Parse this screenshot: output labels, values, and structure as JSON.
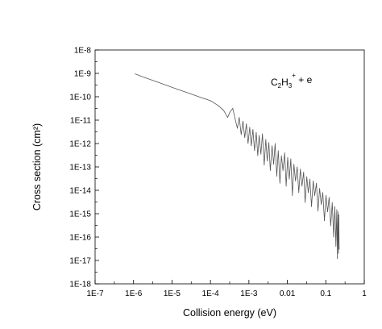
{
  "chart_data": {
    "type": "line",
    "title": "",
    "xlabel": "Collision energy (eV)",
    "ylabel": "Cross section (cm²)",
    "annotation": {
      "species": "C2H3+ + e",
      "parts": [
        {
          "text": "C",
          "kind": "normal"
        },
        {
          "text": "2",
          "kind": "sub"
        },
        {
          "text": "H",
          "kind": "normal"
        },
        {
          "text": "3",
          "kind": "sub"
        },
        {
          "text": "+",
          "kind": "sup"
        },
        {
          "text": " + e",
          "kind": "normal"
        }
      ]
    },
    "x_scale": "log",
    "y_scale": "log",
    "xlim": [
      1e-07,
      1
    ],
    "ylim": [
      1e-18,
      1e-08
    ],
    "x_ticks": [
      {
        "value": 1e-07,
        "label": "1E-7"
      },
      {
        "value": 1e-06,
        "label": "1E-6"
      },
      {
        "value": 1e-05,
        "label": "1E-5"
      },
      {
        "value": 0.0001,
        "label": "1E-4"
      },
      {
        "value": 0.001,
        "label": "1E-3"
      },
      {
        "value": 0.01,
        "label": "0.01"
      },
      {
        "value": 0.1,
        "label": "0.1"
      },
      {
        "value": 1,
        "label": "1"
      }
    ],
    "y_ticks": [
      {
        "value": 1e-08,
        "label": "1E-8"
      },
      {
        "value": 1e-09,
        "label": "1E-9"
      },
      {
        "value": 1e-10,
        "label": "1E-10"
      },
      {
        "value": 1e-11,
        "label": "1E-11"
      },
      {
        "value": 1e-12,
        "label": "1E-12"
      },
      {
        "value": 1e-13,
        "label": "1E-13"
      },
      {
        "value": 1e-14,
        "label": "1E-14"
      },
      {
        "value": 1e-15,
        "label": "1E-15"
      },
      {
        "value": 1e-16,
        "label": "1E-16"
      },
      {
        "value": 1e-17,
        "label": "1E-17"
      },
      {
        "value": 1e-18,
        "label": "1E-18"
      }
    ],
    "grid": false,
    "legend": "none",
    "series": [
      {
        "color": "#555555",
        "points": [
          [
            1.1e-06,
            9.5e-10
          ],
          [
            2e-06,
            6.5e-10
          ],
          [
            4e-06,
            4.4e-10
          ],
          [
            8e-06,
            2.9e-10
          ],
          [
            1.5e-05,
            2e-10
          ],
          [
            3e-05,
            1.35e-10
          ],
          [
            6e-05,
            9e-11
          ],
          [
            0.0001,
            6.8e-11
          ],
          [
            0.00016,
            4.2e-11
          ],
          [
            0.00022,
            2.6e-11
          ],
          [
            0.00028,
            1.3e-11
          ],
          [
            0.00032,
            2.2e-11
          ],
          [
            0.00038,
            3.2e-11
          ],
          [
            0.00044,
            1.1e-11
          ],
          [
            0.0005,
            4.5e-12
          ],
          [
            0.00056,
            1.3e-11
          ],
          [
            0.00063,
            2.4e-12
          ],
          [
            0.0007,
            9e-12
          ],
          [
            0.00078,
            1.8e-12
          ],
          [
            0.00086,
            7e-12
          ],
          [
            0.00095,
            1e-12
          ],
          [
            0.00105,
            5e-12
          ],
          [
            0.00115,
            8e-13
          ],
          [
            0.00127,
            4e-12
          ],
          [
            0.0014,
            5e-13
          ],
          [
            0.00155,
            3e-12
          ],
          [
            0.0017,
            3e-13
          ],
          [
            0.00185,
            2.2e-12
          ],
          [
            0.00205,
            3.5e-13
          ],
          [
            0.00225,
            2.6e-12
          ],
          [
            0.0025,
            1.2e-13
          ],
          [
            0.00275,
            1.5e-12
          ],
          [
            0.003,
            1.8e-13
          ],
          [
            0.0033,
            1.1e-12
          ],
          [
            0.0036,
            7e-14
          ],
          [
            0.004,
            8e-13
          ],
          [
            0.0044,
            1.3e-13
          ],
          [
            0.0048,
            1e-12
          ],
          [
            0.0053,
            4e-14
          ],
          [
            0.0058,
            5e-13
          ],
          [
            0.0064,
            2e-14
          ],
          [
            0.007,
            3e-13
          ],
          [
            0.0077,
            7e-14
          ],
          [
            0.0085,
            4e-13
          ],
          [
            0.0093,
            1.5e-14
          ],
          [
            0.0102,
            2.5e-13
          ],
          [
            0.0112,
            3e-14
          ],
          [
            0.0123,
            2.2e-13
          ],
          [
            0.0135,
            6e-15
          ],
          [
            0.0148,
            1.3e-13
          ],
          [
            0.0163,
            2.5e-14
          ],
          [
            0.018,
            1e-13
          ],
          [
            0.0198,
            8e-15
          ],
          [
            0.0218,
            8e-14
          ],
          [
            0.024,
            1.5e-14
          ],
          [
            0.0265,
            6e-14
          ],
          [
            0.029,
            3e-15
          ],
          [
            0.032,
            3.8e-14
          ],
          [
            0.035,
            8e-15
          ],
          [
            0.0385,
            3e-14
          ],
          [
            0.0425,
            2e-15
          ],
          [
            0.047,
            2.5e-14
          ],
          [
            0.0515,
            6e-15
          ],
          [
            0.057,
            2e-14
          ],
          [
            0.0625,
            1.3e-15
          ],
          [
            0.069,
            1.2e-14
          ],
          [
            0.076,
            2.5e-15
          ],
          [
            0.0835,
            8e-15
          ],
          [
            0.092,
            5e-16
          ],
          [
            0.101,
            6e-15
          ],
          [
            0.111,
            1.2e-15
          ],
          [
            0.122,
            5e-15
          ],
          [
            0.134,
            3e-16
          ],
          [
            0.147,
            3e-15
          ],
          [
            0.16,
            1e-16
          ],
          [
            0.172,
            2e-15
          ],
          [
            0.183,
            4e-17
          ],
          [
            0.193,
            1.5e-15
          ],
          [
            0.2,
            1.2e-17
          ],
          [
            0.207,
            1.2e-15
          ],
          [
            0.213,
            2e-17
          ],
          [
            0.218,
            9e-16
          ],
          [
            0.222,
            3e-17
          ]
        ]
      }
    ]
  }
}
